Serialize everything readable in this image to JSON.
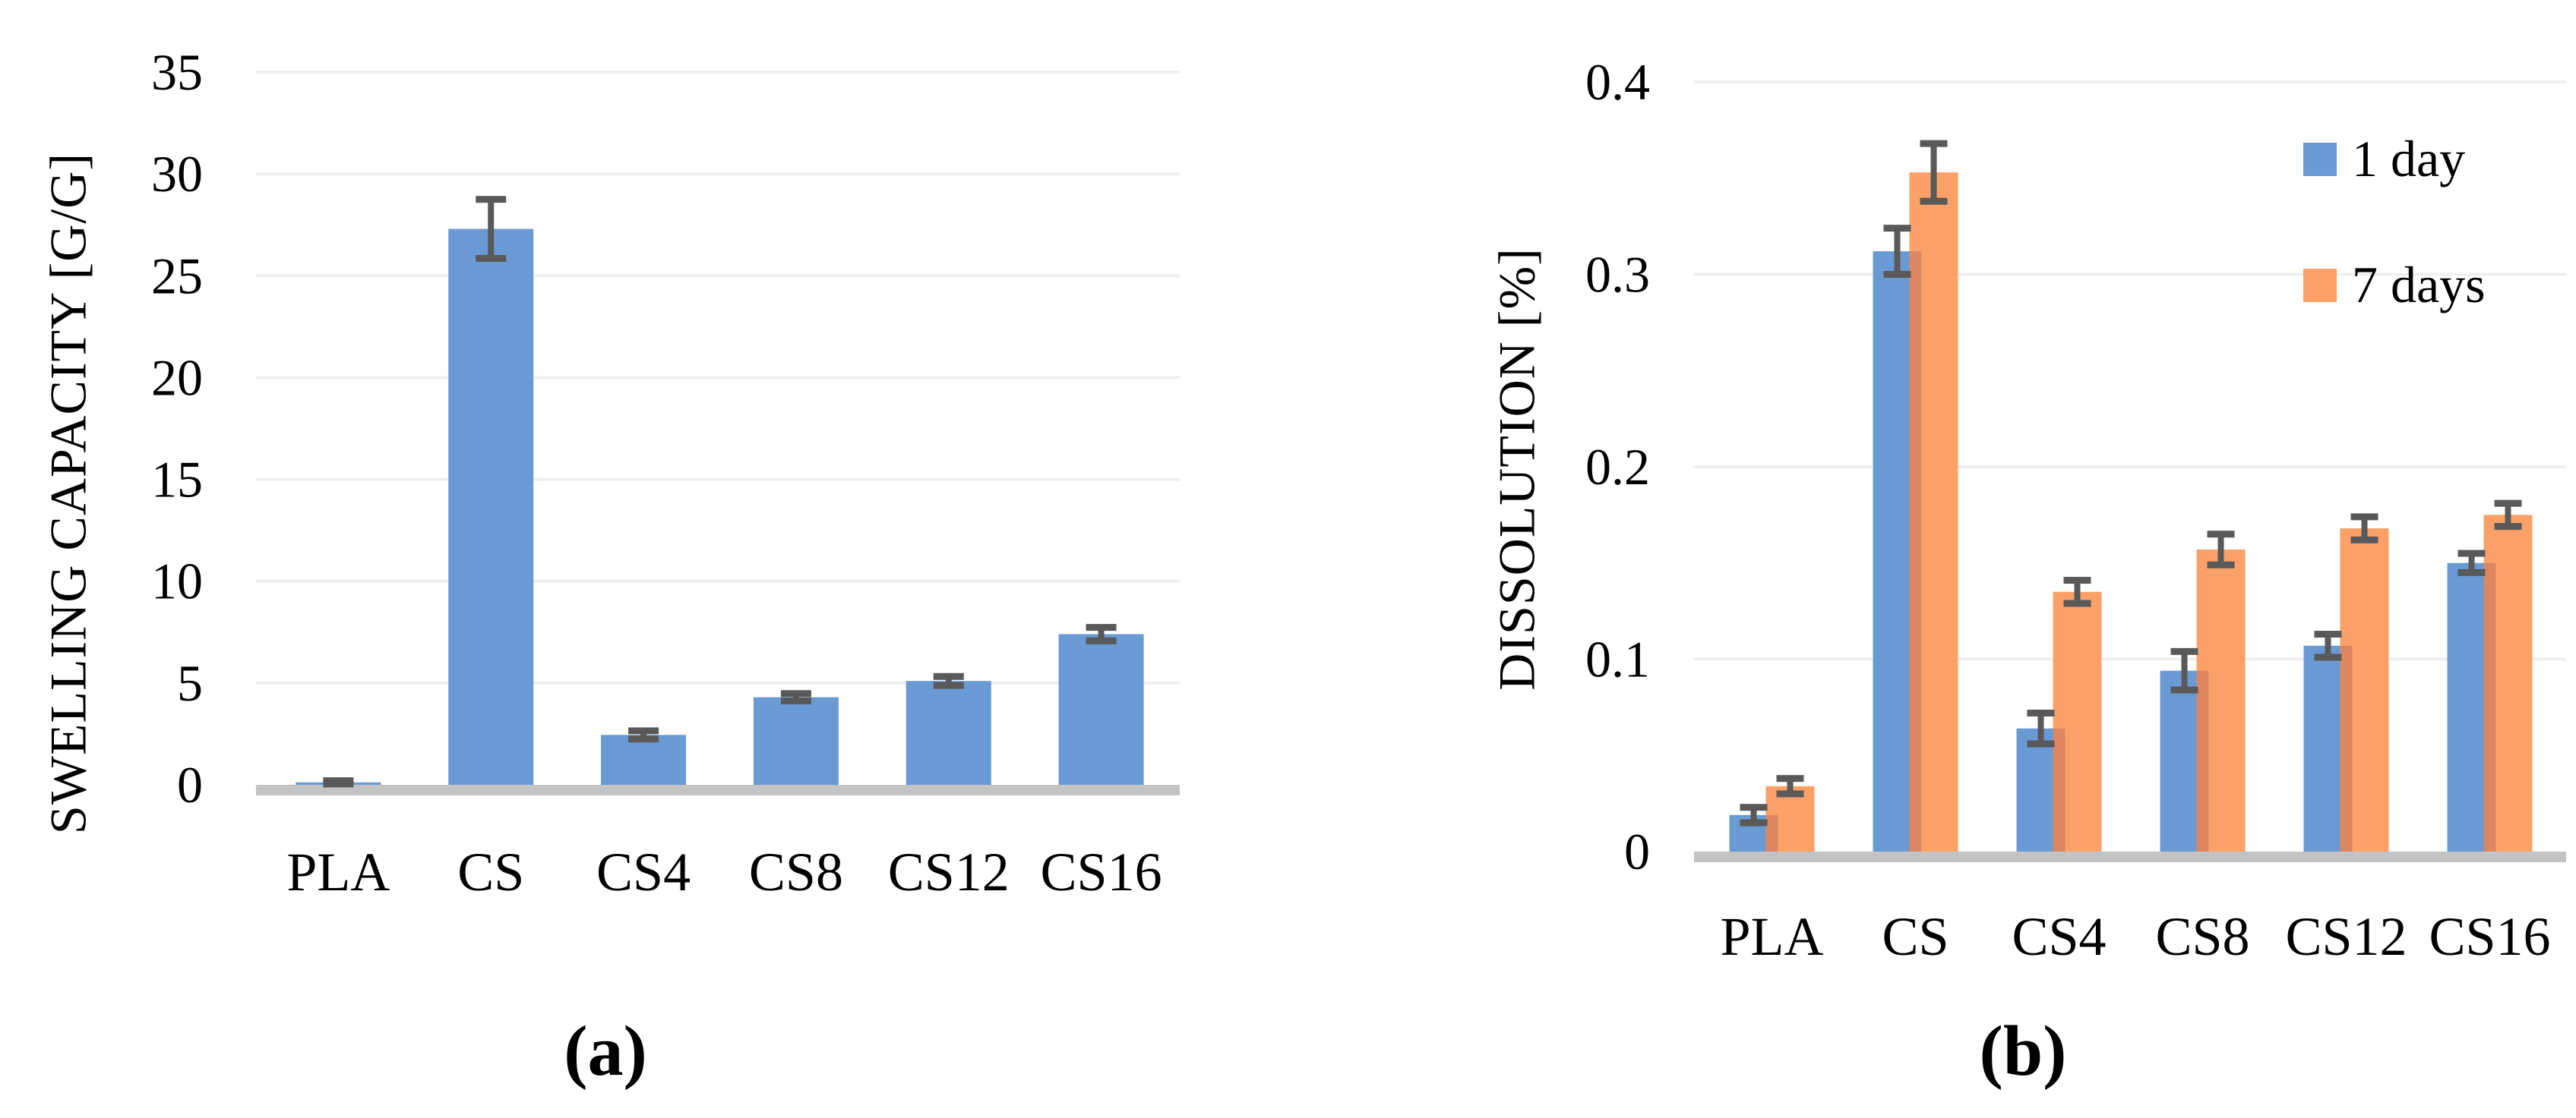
{
  "figure": {
    "caption_a": "(a)",
    "caption_b": "(b)",
    "colors": {
      "bar_blue": "#6A9AD4",
      "bar_orange": "#FBA168",
      "bar_overlap": "#DD8760",
      "error_bar": "#595959",
      "gridline": "#EFEFEF",
      "axis_line": "#C3C3C3",
      "text": "#000000"
    }
  },
  "legend": {
    "items": [
      {
        "label": "1 day",
        "color": "#6A9AD4"
      },
      {
        "label": "7 days",
        "color": "#FBA168"
      }
    ]
  },
  "chart_data": [
    {
      "type": "bar",
      "panel": "a",
      "title": "",
      "xlabel": "",
      "ylabel": "SWELLING CAPACITY [G/G]",
      "categories": [
        "PLA",
        "CS",
        "CS4",
        "CS8",
        "CS12",
        "CS16"
      ],
      "series": [
        {
          "name": "swelling capacity",
          "values": [
            0.12,
            27.3,
            2.45,
            4.3,
            5.1,
            7.4
          ],
          "errors": [
            0.08,
            1.45,
            0.2,
            0.18,
            0.22,
            0.33
          ]
        }
      ],
      "ylim": [
        0,
        35
      ],
      "yticks": [
        0,
        5,
        10,
        15,
        20,
        25,
        30,
        35
      ],
      "ytick_labels": [
        "0",
        "5",
        "10",
        "15",
        "20",
        "25",
        "30",
        "35"
      ],
      "grid": true,
      "legend_position": "none"
    },
    {
      "type": "bar",
      "panel": "b",
      "title": "",
      "xlabel": "",
      "ylabel": "DISSOLUTION [%]",
      "categories": [
        "PLA",
        "CS",
        "CS4",
        "CS8",
        "CS12",
        "CS16"
      ],
      "series": [
        {
          "name": "1 day",
          "values": [
            0.019,
            0.312,
            0.064,
            0.094,
            0.107,
            0.15
          ],
          "errors": [
            0.004,
            0.012,
            0.008,
            0.01,
            0.006,
            0.005
          ]
        },
        {
          "name": "7 days",
          "values": [
            0.034,
            0.353,
            0.135,
            0.157,
            0.168,
            0.175
          ],
          "errors": [
            0.004,
            0.015,
            0.006,
            0.008,
            0.006,
            0.006
          ]
        }
      ],
      "ylim": [
        0,
        0.4
      ],
      "yticks": [
        0,
        0.1,
        0.2,
        0.3,
        0.4
      ],
      "ytick_labels": [
        "0",
        "0.1",
        "0.2",
        "0.3",
        "0.4"
      ],
      "grid": true,
      "legend_position": "top-right"
    }
  ]
}
